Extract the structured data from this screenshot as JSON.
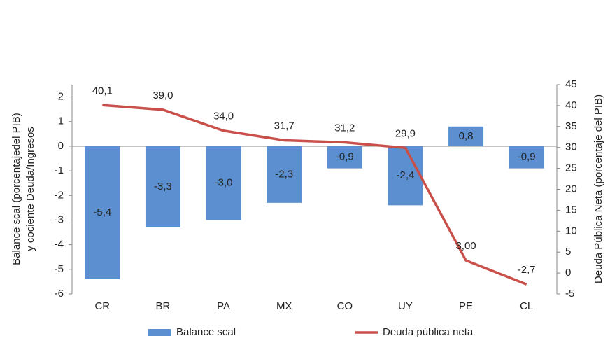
{
  "chart_data": {
    "type": "bar_line",
    "categories": [
      "CR",
      "BR",
      "PA",
      "MX",
      "CO",
      "UY",
      "PE",
      "CL"
    ],
    "series": [
      {
        "name": "Balance  scal",
        "type": "bar",
        "color": "#5b8fcf",
        "axis": "y",
        "values": [
          -5.4,
          -3.3,
          -3.0,
          -2.3,
          -0.9,
          -2.4,
          0.8,
          -0.9
        ],
        "value_labels": [
          "-5,4",
          "-3,3",
          "-3,0",
          "-2,3",
          "-0,9",
          "-2,4",
          "0,8",
          "-0,9"
        ]
      },
      {
        "name": "Deuda pública neta",
        "type": "line",
        "color": "#c9504a",
        "axis": "y2",
        "values": [
          40.1,
          39.0,
          34.0,
          31.7,
          31.2,
          29.9,
          3.0,
          -2.7
        ],
        "value_labels": [
          "40,1",
          "39,0",
          "34,0",
          "31,7",
          "31,2",
          "29,9",
          "3,00",
          "-2,7"
        ]
      }
    ],
    "y_label": [
      "Balance  scal (porcentajedel PIB)",
      "y cociente Deuda/Ingresos"
    ],
    "y2_label": "Deuda Pública Neta (porcentaje del PIB)",
    "ylim": [
      -6,
      2.5
    ],
    "yticks": [
      -6,
      -5,
      -4,
      -3,
      -2,
      -1,
      0,
      1,
      2
    ],
    "y2lim": [
      -5,
      45
    ],
    "y2ticks": [
      -5,
      0,
      5,
      10,
      15,
      20,
      25,
      30,
      35,
      40,
      45
    ],
    "legend": "bottom"
  }
}
